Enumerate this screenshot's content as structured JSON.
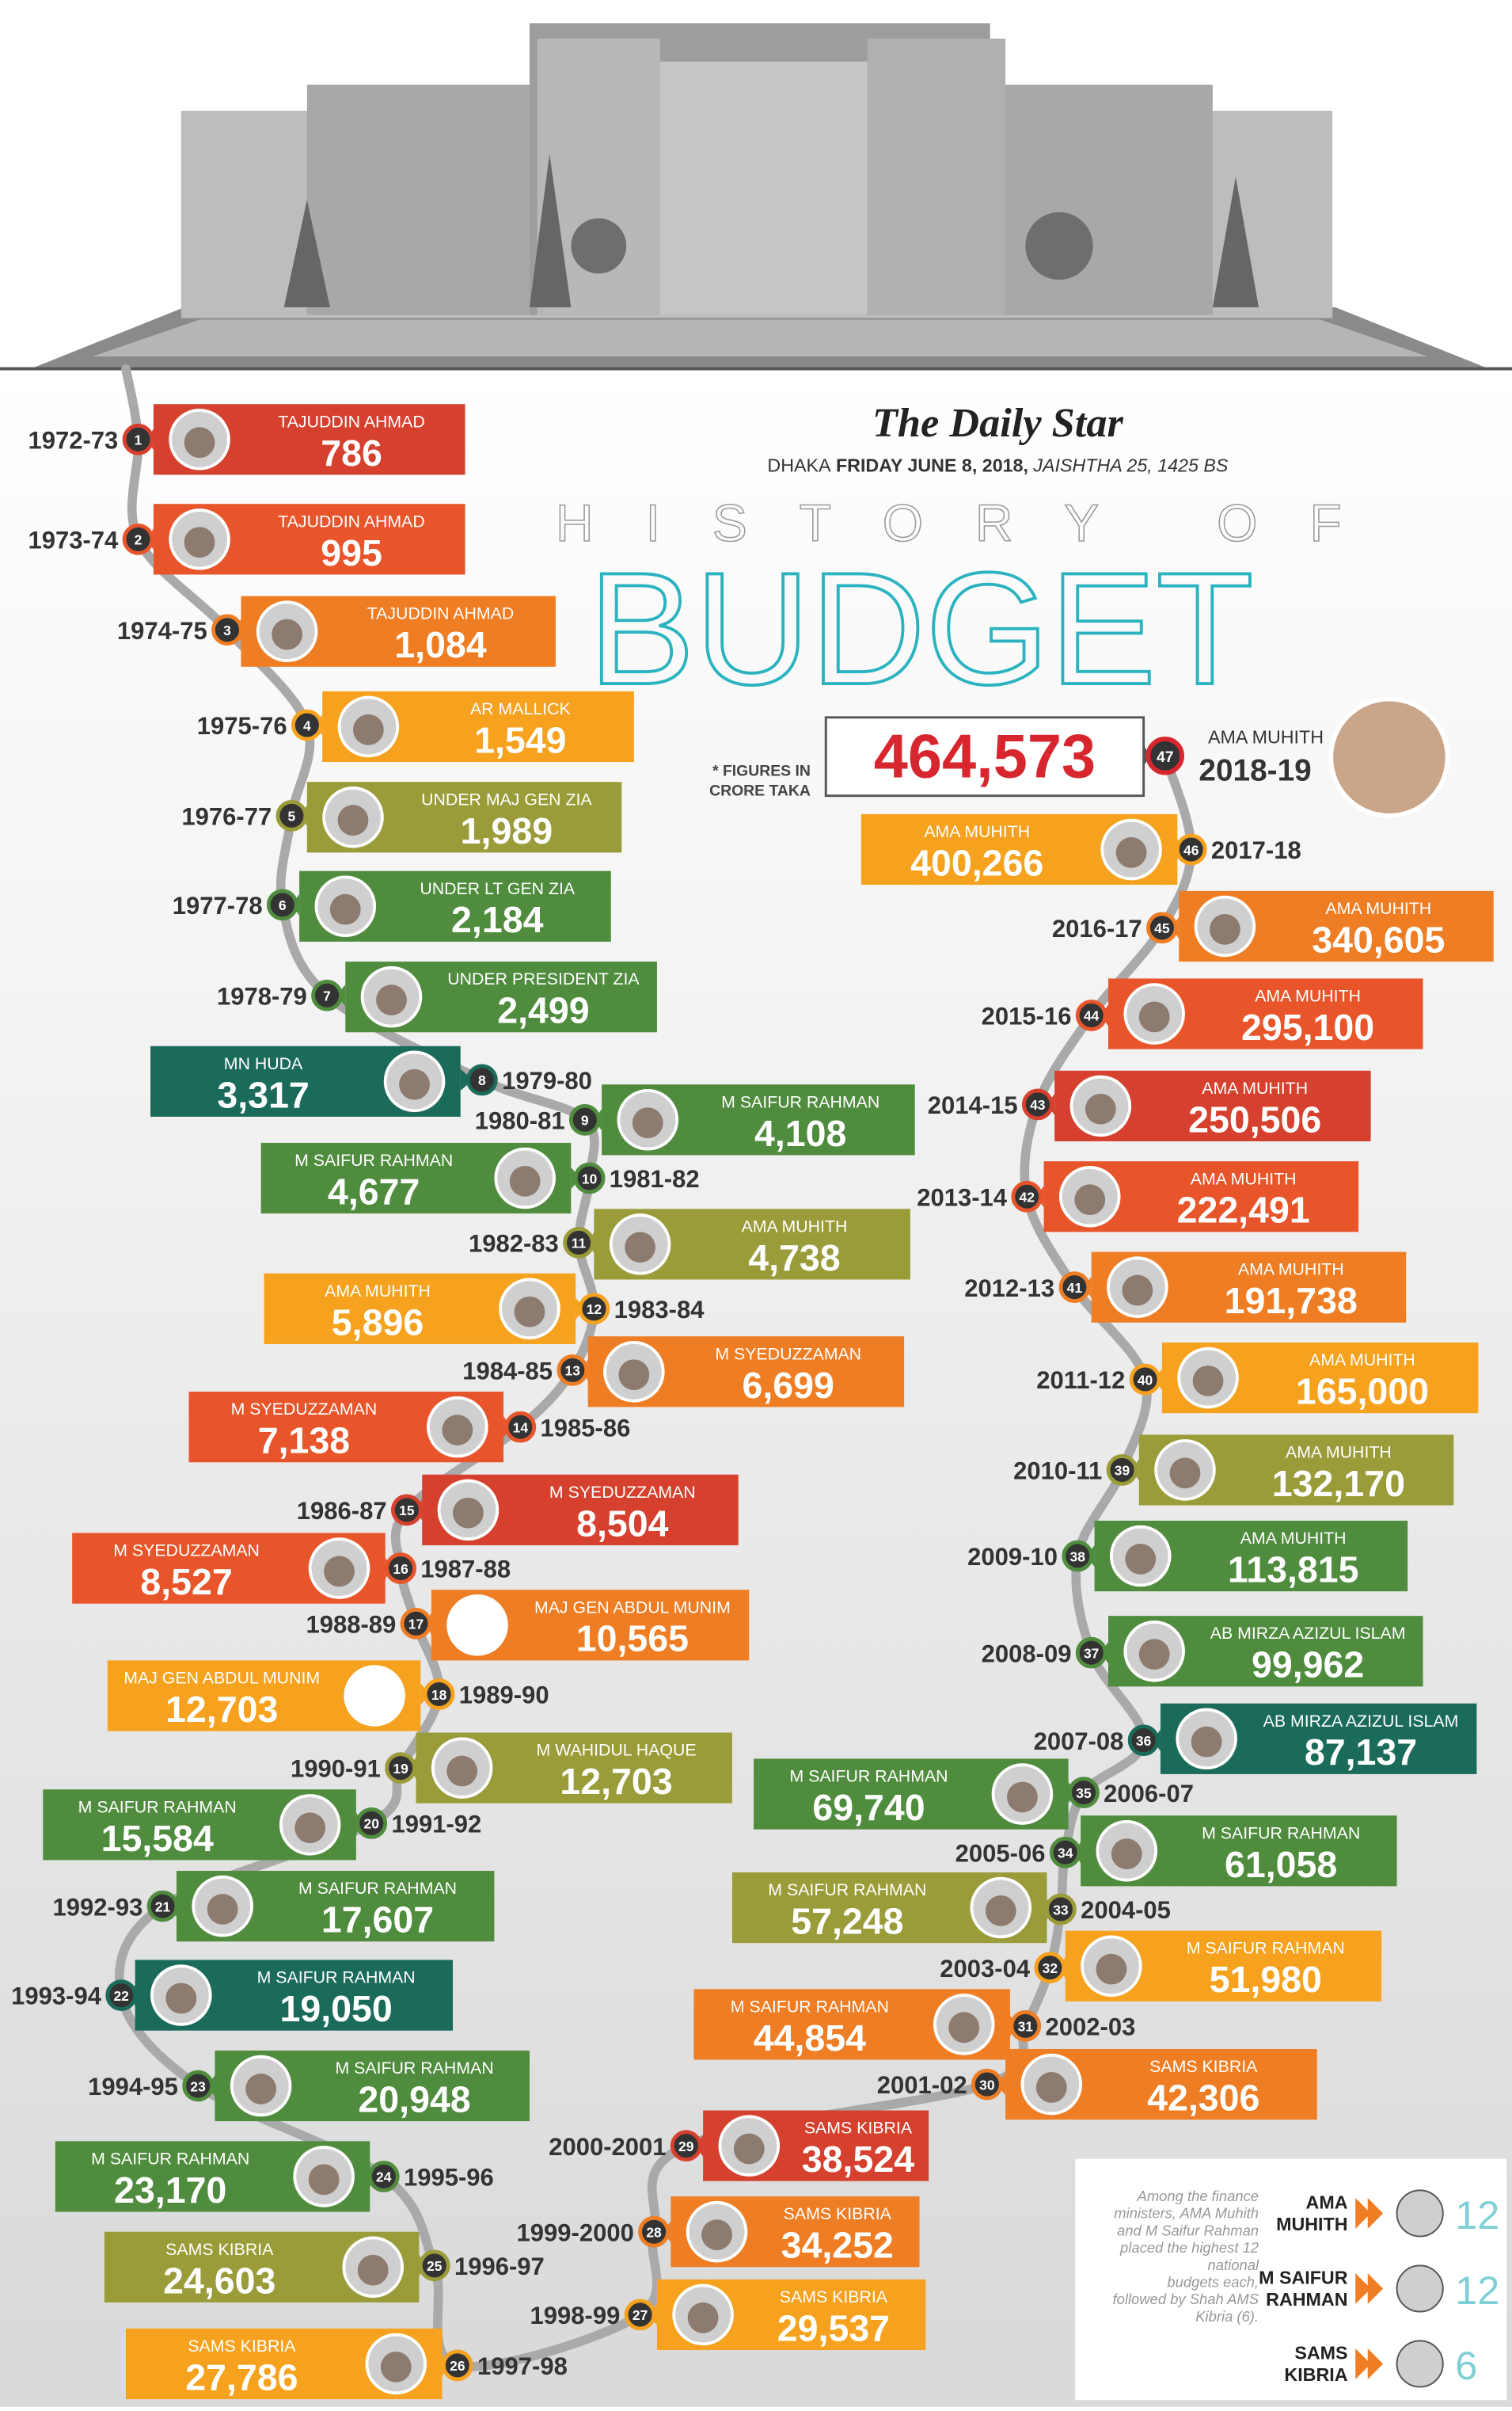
{
  "header": {
    "brand": "The Daily Star",
    "city": "DHAKA",
    "date": "FRIDAY JUNE 8, 2018,",
    "local_date": "JAISHTHA 25, 1425 BS",
    "kicker": "HISTORY OF",
    "title": "BUDGET",
    "note": [
      "* FIGURES IN",
      "CRORE TAKA"
    ]
  },
  "entries": [
    {
      "no": 1,
      "year": "1972-73",
      "name": "TAJUDDIN AHMAD",
      "amount": "786",
      "color": "#d5412e"
    },
    {
      "no": 2,
      "year": "1973-74",
      "name": "TAJUDDIN AHMAD",
      "amount": "995",
      "color": "#e8552b"
    },
    {
      "no": 3,
      "year": "1974-75",
      "name": "TAJUDDIN AHMAD",
      "amount": "1,084",
      "color": "#ef7d24"
    },
    {
      "no": 4,
      "year": "1975-76",
      "name": "AR MALLICK",
      "amount": "1,549",
      "color": "#f6a21e"
    },
    {
      "no": 5,
      "year": "1976-77",
      "name": "UNDER MAJ GEN ZIA",
      "amount": "1,989",
      "color": "#9a9c3a"
    },
    {
      "no": 6,
      "year": "1977-78",
      "name": "UNDER LT GEN  ZIA",
      "amount": "2,184",
      "color": "#4f8c3d"
    },
    {
      "no": 7,
      "year": "1978-79",
      "name": "UNDER PRESIDENT ZIA",
      "amount": "2,499",
      "color": "#4f8c3d"
    },
    {
      "no": 8,
      "year": "1979-80",
      "name": "MN HUDA",
      "amount": "3,317",
      "color": "#1b6b5a"
    },
    {
      "no": 9,
      "year": "1980-81",
      "name": "M SAIFUR RAHMAN",
      "amount": "4,108",
      "color": "#4f8c3d"
    },
    {
      "no": 10,
      "year": "1981-82",
      "name": "M SAIFUR RAHMAN",
      "amount": "4,677",
      "color": "#4f8c3d"
    },
    {
      "no": 11,
      "year": "1982-83",
      "name": "AMA MUHITH",
      "amount": "4,738",
      "color": "#9a9c3a"
    },
    {
      "no": 12,
      "year": "1983-84",
      "name": "AMA MUHITH",
      "amount": "5,896",
      "color": "#f6a21e"
    },
    {
      "no": 13,
      "year": "1984-85",
      "name": "M SYEDUZZAMAN",
      "amount": "6,699",
      "color": "#ef7d24"
    },
    {
      "no": 14,
      "year": "1985-86",
      "name": "M SYEDUZZAMAN",
      "amount": "7,138",
      "color": "#e8552b"
    },
    {
      "no": 15,
      "year": "1986-87",
      "name": "M SYEDUZZAMAN",
      "amount": "8,504",
      "color": "#d5412e"
    },
    {
      "no": 16,
      "year": "1987-88",
      "name": "M SYEDUZZAMAN",
      "amount": "8,527",
      "color": "#e8552b"
    },
    {
      "no": 17,
      "year": "1988-89",
      "name": "MAJ GEN ABDUL MUNIM",
      "amount": "10,565",
      "color": "#ef7d24"
    },
    {
      "no": 18,
      "year": "1989-90",
      "name": "MAJ GEN ABDUL MUNIM",
      "amount": "12,703",
      "color": "#f6a21e"
    },
    {
      "no": 19,
      "year": "1990-91",
      "name": "M WAHIDUL HAQUE",
      "amount": "12,703",
      "color": "#9a9c3a"
    },
    {
      "no": 20,
      "year": "1991-92",
      "name": "M SAIFUR RAHMAN",
      "amount": "15,584",
      "color": "#4f8c3d"
    },
    {
      "no": 21,
      "year": "1992-93",
      "name": "M SAIFUR  RAHMAN",
      "amount": "17,607",
      "color": "#4f8c3d"
    },
    {
      "no": 22,
      "year": "1993-94",
      "name": "M SAIFUR RAHMAN",
      "amount": "19,050",
      "color": "#1b6b5a"
    },
    {
      "no": 23,
      "year": "1994-95",
      "name": "M SAIFUR RAHMAN",
      "amount": "20,948",
      "color": "#4f8c3d"
    },
    {
      "no": 24,
      "year": "1995-96",
      "name": "M SAIFUR RAHMAN",
      "amount": "23,170",
      "color": "#4f8c3d"
    },
    {
      "no": 25,
      "year": "1996-97",
      "name": "SAMS KIBRIA",
      "amount": "24,603",
      "color": "#9a9c3a"
    },
    {
      "no": 26,
      "year": "1997-98",
      "name": "SAMS KIBRIA",
      "amount": "27,786",
      "color": "#f6a21e"
    },
    {
      "no": 27,
      "year": "1998-99",
      "name": "SAMS KIBRIA",
      "amount": "29,537",
      "color": "#f6a21e"
    },
    {
      "no": 28,
      "year": "1999-2000",
      "name": "SAMS KIBRIA",
      "amount": "34,252",
      "color": "#ef7d24"
    },
    {
      "no": 29,
      "year": "2000-2001",
      "name": "SAMS KIBRIA",
      "amount": "38,524",
      "color": "#d5412e"
    },
    {
      "no": 30,
      "year": "2001-02",
      "name": "SAMS KIBRIA",
      "amount": "42,306",
      "color": "#ef7d24"
    },
    {
      "no": 31,
      "year": "2002-03",
      "name": "M SAIFUR RAHMAN",
      "amount": "44,854",
      "color": "#ef7d24"
    },
    {
      "no": 32,
      "year": "2003-04",
      "name": "M SAIFUR RAHMAN",
      "amount": "51,980",
      "color": "#f6a21e"
    },
    {
      "no": 33,
      "year": "2004-05",
      "name": "M SAIFUR RAHMAN",
      "amount": "57,248",
      "color": "#9a9c3a"
    },
    {
      "no": 34,
      "year": "2005-06",
      "name": "M SAIFUR RAHMAN",
      "amount": "61,058",
      "color": "#4f8c3d"
    },
    {
      "no": 35,
      "year": "2006-07",
      "name": "M SAIFUR RAHMAN",
      "amount": "69,740",
      "color": "#4f8c3d"
    },
    {
      "no": 36,
      "year": "2007-08",
      "name": "AB MIRZA AZIZUL ISLAM",
      "amount": "87,137",
      "color": "#1b6b5a"
    },
    {
      "no": 37,
      "year": "2008-09",
      "name": "AB MIRZA AZIZUL ISLAM",
      "amount": "99,962",
      "color": "#4f8c3d"
    },
    {
      "no": 38,
      "year": "2009-10",
      "name": "AMA MUHITH",
      "amount": "113,815",
      "color": "#4f8c3d"
    },
    {
      "no": 39,
      "year": "2010-11",
      "name": "AMA MUHITH",
      "amount": "132,170",
      "color": "#9a9c3a"
    },
    {
      "no": 40,
      "year": "2011-12",
      "name": "AMA MUHITH",
      "amount": "165,000",
      "color": "#f6a21e"
    },
    {
      "no": 41,
      "year": "2012-13",
      "name": "AMA MUHITH",
      "amount": "191,738",
      "color": "#ef7d24"
    },
    {
      "no": 42,
      "year": "2013-14",
      "name": "AMA MUHITH",
      "amount": "222,491",
      "color": "#e8552b"
    },
    {
      "no": 43,
      "year": "2014-15",
      "name": "AMA MUHITH",
      "amount": "250,506",
      "color": "#d5412e"
    },
    {
      "no": 44,
      "year": "2015-16",
      "name": "AMA MUHITH",
      "amount": "295,100",
      "color": "#e8552b"
    },
    {
      "no": 45,
      "year": "2016-17",
      "name": "AMA MUHITH",
      "amount": "340,605",
      "color": "#ef7d24"
    },
    {
      "no": 46,
      "year": "2017-18",
      "name": "AMA MUHITH",
      "amount": "400,266",
      "color": "#f6a21e"
    },
    {
      "no": 47,
      "year": "2018-19",
      "name": "AMA MUHITH",
      "amount": "464,573",
      "color": "#d7262e"
    }
  ],
  "legend": {
    "text": [
      "Among the finance",
      "ministers, AMA Muhith",
      "and M Saifur Rahman",
      "placed the highest 12",
      "national",
      "budgets each,",
      "followed by Shah AMS",
      "Kibria (6)."
    ],
    "rows": [
      {
        "name": [
          "AMA",
          "MUHITH"
        ],
        "count": 12
      },
      {
        "name": [
          "M SAIFUR",
          "RAHMAN"
        ],
        "count": 12
      },
      {
        "name": [
          "SAMS",
          "KIBRIA"
        ],
        "count": 6
      }
    ]
  }
}
